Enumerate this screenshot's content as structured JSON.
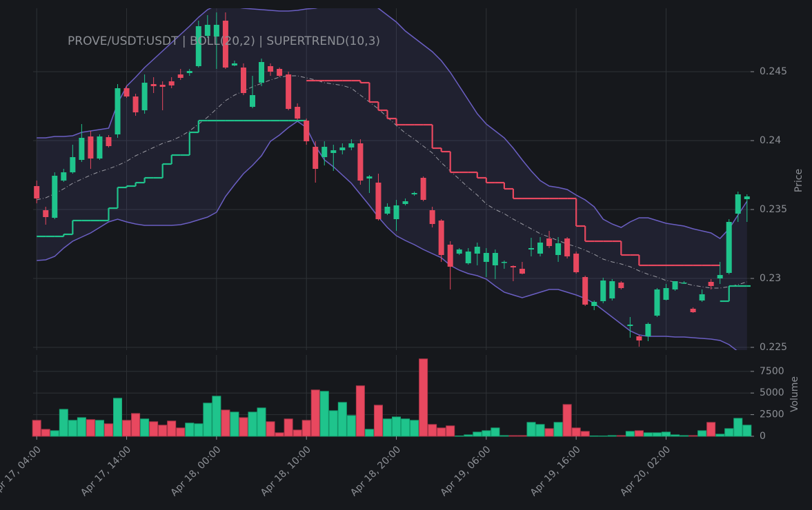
{
  "chart_data": {
    "type": "candlestick",
    "title": "PROVE/USDT:USDT | BOLL(20,2) | SUPERTREND(10,3)",
    "ylabel": "Price",
    "volume_label": "Volume",
    "up_color": "#1fc48c",
    "down_color": "#e8485f",
    "xlim": [
      -0.4,
      79.4
    ],
    "xticks": [
      {
        "value": 0,
        "label": "Apr 17, 04:00"
      },
      {
        "value": 10,
        "label": "Apr 17, 14:00"
      },
      {
        "value": 20,
        "label": "Apr 18, 00:00"
      },
      {
        "value": 30,
        "label": "Apr 18, 10:00"
      },
      {
        "value": 40,
        "label": "Apr 18, 20:00"
      },
      {
        "value": 50,
        "label": "Apr 19, 06:00"
      },
      {
        "value": 60,
        "label": "Apr 19, 16:00"
      },
      {
        "value": 70,
        "label": "Apr 20, 02:00"
      }
    ],
    "ylim": [
      0.2248,
      0.2496
    ],
    "yticks": [
      0.225,
      0.23,
      0.235,
      0.24,
      0.245
    ],
    "volume_ylim": [
      0,
      9400
    ],
    "volume_yticks": [
      0,
      2500,
      5000,
      7500
    ],
    "grid": true,
    "open": [
      0.2367,
      0.23495,
      0.2344,
      0.2371,
      0.2377,
      0.2386,
      0.2403,
      0.2387,
      0.24025,
      0.24045,
      0.2438,
      0.2432,
      0.2422,
      0.2441,
      0.24405,
      0.2443,
      0.2448,
      0.2449,
      0.2454,
      0.2476,
      0.24755,
      0.2487,
      0.24545,
      0.2453,
      0.24245,
      0.2442,
      0.2454,
      0.2452,
      0.2448,
      0.24245,
      0.24145,
      0.23955,
      0.2388,
      0.2391,
      0.2393,
      0.2395,
      0.2398,
      0.23725,
      0.23695,
      0.2347,
      0.2343,
      0.2354,
      0.2361,
      0.2373,
      0.23495,
      0.2342,
      0.23245,
      0.2318,
      0.2311,
      0.2318,
      0.2312,
      0.23095,
      0.2312,
      0.2309,
      0.2307,
      0.2321,
      0.2318,
      0.2329,
      0.2317,
      0.2329,
      0.2318,
      0.2301,
      0.228,
      0.22835,
      0.22855,
      0.2297,
      0.22655,
      0.2258,
      0.2258,
      0.2273,
      0.22845,
      0.2292,
      0.2297,
      0.2278,
      0.2284,
      0.22975,
      0.23,
      0.2304,
      0.2347,
      0.23575
    ],
    "high": [
      0.2371,
      0.2352,
      0.2377,
      0.23795,
      0.2397,
      0.2412,
      0.2407,
      0.24045,
      0.2404,
      0.2441,
      0.244,
      0.2434,
      0.2448,
      0.2446,
      0.2443,
      0.2446,
      0.2452,
      0.2452,
      0.2487,
      0.2491,
      0.2493,
      0.2493,
      0.2458,
      0.2456,
      0.2447,
      0.24595,
      0.2456,
      0.2453,
      0.245,
      0.2427,
      0.2416,
      0.23995,
      0.23995,
      0.2397,
      0.2398,
      0.2401,
      0.2401,
      0.2375,
      0.2376,
      0.23545,
      0.2357,
      0.2358,
      0.2363,
      0.2374,
      0.2352,
      0.2343,
      0.2327,
      0.2322,
      0.2322,
      0.2326,
      0.2322,
      0.2321,
      0.2313,
      0.23095,
      0.2312,
      0.23295,
      0.233,
      0.23345,
      0.233,
      0.233,
      0.23195,
      0.2302,
      0.2284,
      0.23005,
      0.22995,
      0.2298,
      0.2272,
      0.2259,
      0.2268,
      0.2293,
      0.2296,
      0.2298,
      0.2298,
      0.2279,
      0.2292,
      0.22995,
      0.2312,
      0.2343,
      0.2363,
      0.2361
    ],
    "low": [
      0.23545,
      0.2339,
      0.2343,
      0.237,
      0.2376,
      0.23845,
      0.23795,
      0.2386,
      0.2395,
      0.2402,
      0.2431,
      0.2418,
      0.24195,
      0.24345,
      0.2422,
      0.2438,
      0.2444,
      0.2447,
      0.2453,
      0.24745,
      0.2452,
      0.2452,
      0.2454,
      0.2433,
      0.24235,
      0.24395,
      0.2447,
      0.2446,
      0.2422,
      0.2415,
      0.2397,
      0.23695,
      0.2382,
      0.2378,
      0.239,
      0.2393,
      0.2368,
      0.2362,
      0.2342,
      0.2346,
      0.23345,
      0.2353,
      0.236,
      0.2356,
      0.2337,
      0.2312,
      0.2292,
      0.2317,
      0.231,
      0.23095,
      0.2301,
      0.22995,
      0.2307,
      0.2298,
      0.2303,
      0.2316,
      0.2316,
      0.2322,
      0.2312,
      0.23145,
      0.23035,
      0.228,
      0.2277,
      0.2282,
      0.2284,
      0.2292,
      0.2257,
      0.22505,
      0.22545,
      0.2272,
      0.2284,
      0.2291,
      0.2296,
      0.2275,
      0.2283,
      0.2292,
      0.2296,
      0.2303,
      0.2341,
      0.2341
    ],
    "close": [
      0.2358,
      0.23445,
      0.23745,
      0.2377,
      0.2388,
      0.2402,
      0.2387,
      0.2403,
      0.2396,
      0.2438,
      0.2432,
      0.24205,
      0.2442,
      0.24395,
      0.2439,
      0.244,
      0.24455,
      0.24505,
      0.2483,
      0.2484,
      0.2484,
      0.2453,
      0.2456,
      0.24345,
      0.2433,
      0.2457,
      0.245,
      0.2447,
      0.2423,
      0.2416,
      0.23995,
      0.23795,
      0.23955,
      0.2393,
      0.2395,
      0.2398,
      0.2371,
      0.2374,
      0.2343,
      0.2352,
      0.2353,
      0.2356,
      0.2362,
      0.2357,
      0.23395,
      0.2317,
      0.23085,
      0.2321,
      0.23195,
      0.2323,
      0.23185,
      0.23185,
      0.2312,
      0.2308,
      0.23035,
      0.2322,
      0.2326,
      0.23235,
      0.23255,
      0.2316,
      0.23045,
      0.2281,
      0.2283,
      0.22985,
      0.2298,
      0.2293,
      0.22665,
      0.2255,
      0.2267,
      0.2292,
      0.2293,
      0.2298,
      0.2297,
      0.22755,
      0.22885,
      0.22945,
      0.23025,
      0.2341,
      0.2361,
      0.23595
    ],
    "volume": [
      1840,
      800,
      640,
      3110,
      1840,
      2150,
      1920,
      1840,
      1440,
      4390,
      1840,
      2630,
      2000,
      1680,
      1280,
      1760,
      960,
      1520,
      1440,
      3830,
      4630,
      3030,
      2790,
      2150,
      2790,
      3270,
      1680,
      400,
      2000,
      720,
      1840,
      5350,
      5190,
      2950,
      3910,
      2390,
      5830,
      800,
      3590,
      2000,
      2230,
      2000,
      1840,
      8940,
      1360,
      960,
      1200,
      40,
      160,
      480,
      640,
      960,
      80,
      80,
      80,
      1600,
      1360,
      880,
      1600,
      3670,
      960,
      560,
      40,
      30,
      80,
      80,
      560,
      640,
      400,
      400,
      480,
      160,
      80,
      80,
      640,
      1600,
      240,
      880,
      2070,
      1280
    ],
    "bands": {
      "color": "#6b5fc4",
      "middle_color": "#9a9aa2",
      "upper": [
        0.2402,
        0.2402,
        0.2403,
        0.2403,
        0.24035,
        0.2406,
        0.2407,
        0.2408,
        0.2409,
        0.2427,
        0.24395,
        0.2446,
        0.2453,
        0.2459,
        0.2465,
        0.2471,
        0.2477,
        0.2483,
        0.24895,
        0.2495,
        0.2498,
        0.2498,
        0.2497,
        0.2496,
        0.24955,
        0.2495,
        0.24945,
        0.2494,
        0.2494,
        0.24945,
        0.24955,
        0.2496,
        0.24975,
        0.24985,
        0.24995,
        0.25,
        0.25,
        0.2499,
        0.2496,
        0.2491,
        0.2486,
        0.24795,
        0.24745,
        0.24695,
        0.24645,
        0.2458,
        0.24495,
        0.24395,
        0.24295,
        0.24195,
        0.2412,
        0.2407,
        0.2402,
        0.23945,
        0.2386,
        0.2378,
        0.2371,
        0.2367,
        0.2366,
        0.23645,
        0.23605,
        0.2357,
        0.2352,
        0.2343,
        0.23395,
        0.2337,
        0.2341,
        0.2344,
        0.2344,
        0.2342,
        0.234,
        0.2339,
        0.2338,
        0.2336,
        0.23345,
        0.2333,
        0.2329,
        0.2336,
        0.2346,
        0.2356
      ],
      "middle": [
        0.2357,
        0.23585,
        0.23615,
        0.2365,
        0.2369,
        0.2372,
        0.2375,
        0.23775,
        0.23795,
        0.2382,
        0.2385,
        0.2389,
        0.2392,
        0.2395,
        0.2398,
        0.24,
        0.2403,
        0.2407,
        0.2412,
        0.2417,
        0.2423,
        0.2429,
        0.2433,
        0.2436,
        0.2439,
        0.24415,
        0.2444,
        0.2446,
        0.2447,
        0.2447,
        0.24455,
        0.2444,
        0.2442,
        0.2441,
        0.244,
        0.2438,
        0.2433,
        0.2428,
        0.2423,
        0.2417,
        0.2411,
        0.24055,
        0.2401,
        0.2396,
        0.2391,
        0.2384,
        0.2378,
        0.2372,
        0.2366,
        0.23605,
        0.2354,
        0.235,
        0.2347,
        0.2343,
        0.23395,
        0.2336,
        0.23325,
        0.233,
        0.23275,
        0.2325,
        0.2323,
        0.23205,
        0.23175,
        0.2314,
        0.2312,
        0.23105,
        0.23085,
        0.23055,
        0.2303,
        0.2301,
        0.22985,
        0.22975,
        0.22965,
        0.2295,
        0.2294,
        0.2293,
        0.2293,
        0.2294,
        0.22955,
        0.22975
      ],
      "lower": [
        0.2313,
        0.23135,
        0.2316,
        0.2322,
        0.2327,
        0.233,
        0.2333,
        0.2337,
        0.2341,
        0.2343,
        0.2341,
        0.23395,
        0.23385,
        0.23385,
        0.23385,
        0.23385,
        0.2339,
        0.23405,
        0.23425,
        0.23445,
        0.2348,
        0.23595,
        0.2368,
        0.2376,
        0.2382,
        0.2389,
        0.23995,
        0.2404,
        0.24095,
        0.2414,
        0.24095,
        0.2396,
        0.2386,
        0.2381,
        0.2375,
        0.2369,
        0.2361,
        0.2353,
        0.23445,
        0.2337,
        0.2331,
        0.23275,
        0.23245,
        0.2321,
        0.2318,
        0.2315,
        0.23095,
        0.2306,
        0.23035,
        0.2302,
        0.22995,
        0.22945,
        0.229,
        0.2288,
        0.2286,
        0.2288,
        0.229,
        0.2292,
        0.2292,
        0.229,
        0.2288,
        0.22855,
        0.2282,
        0.2277,
        0.2272,
        0.2267,
        0.2262,
        0.2259,
        0.2258,
        0.2258,
        0.2258,
        0.22575,
        0.22575,
        0.2257,
        0.22565,
        0.2256,
        0.2255,
        0.2252,
        0.2247,
        0.2242
      ]
    },
    "supertrend": {
      "up": [
        0.23305,
        0.23305,
        0.23305,
        0.2332,
        0.2342,
        0.2342,
        0.2342,
        0.2342,
        0.2351,
        0.2366,
        0.2367,
        0.23695,
        0.2373,
        0.2373,
        0.2383,
        0.23895,
        0.23895,
        0.2406,
        0.24145,
        0.24145,
        0.24145,
        0.24145,
        0.24145,
        0.24145,
        0.24145,
        0.24145,
        0.24145,
        0.24145,
        0.24145,
        0.24145,
        null,
        null,
        null,
        null,
        null,
        null,
        null,
        null,
        null,
        null,
        null,
        null,
        null,
        null,
        null,
        null,
        null,
        null,
        null,
        null,
        null,
        null,
        null,
        null,
        null,
        null,
        null,
        null,
        null,
        null,
        null,
        null,
        null,
        null,
        null,
        null,
        null,
        null,
        null,
        null,
        null,
        null,
        null,
        null,
        null,
        null,
        0.22835,
        0.22945,
        0.22945,
        0.22945
      ],
      "down": [
        null,
        null,
        null,
        null,
        null,
        null,
        null,
        null,
        null,
        null,
        null,
        null,
        null,
        null,
        null,
        null,
        null,
        null,
        null,
        null,
        null,
        null,
        null,
        null,
        null,
        null,
        null,
        null,
        null,
        null,
        0.24435,
        0.24435,
        0.24435,
        0.24435,
        0.24435,
        0.24435,
        0.2442,
        0.2428,
        0.2422,
        0.2416,
        0.24115,
        0.24115,
        0.24115,
        0.24115,
        0.23945,
        0.2392,
        0.2377,
        0.2377,
        0.2377,
        0.2373,
        0.23695,
        0.23695,
        0.2365,
        0.2358,
        0.2358,
        0.2358,
        0.2358,
        0.2358,
        0.2358,
        0.2358,
        0.2338,
        0.2327,
        0.2327,
        0.2327,
        0.2327,
        0.2317,
        0.2317,
        0.23095,
        0.23095,
        0.23095,
        0.23095,
        0.23095,
        0.23095,
        0.23095,
        0.23095,
        0.23095,
        null,
        null,
        null,
        null
      ]
    }
  }
}
